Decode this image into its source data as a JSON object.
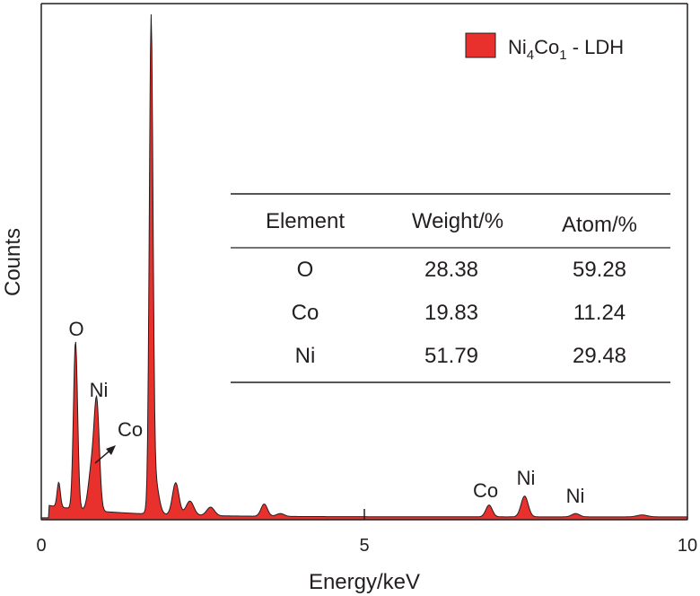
{
  "chart_data": {
    "type": "area",
    "title": "",
    "xlabel": "Energy/keV",
    "ylabel": "Counts",
    "xlim": [
      0,
      10
    ],
    "ylim": [
      0,
      1
    ],
    "x_ticks": [
      "0",
      "5",
      "10"
    ],
    "grid": false,
    "legend": {
      "position": "top-right",
      "entries": [
        {
          "base": "Ni",
          "sub1": "4",
          "mid": "Co",
          "sub2": "1",
          "suffix": " - LDH"
        }
      ]
    },
    "series": [
      {
        "name": "Ni4Co1 - LDH",
        "color": "#e8302c",
        "peaks": [
          {
            "x": 0.27,
            "h": 0.052,
            "w": 0.025
          },
          {
            "x": 0.53,
            "h": 0.355,
            "w": 0.032
          },
          {
            "x": 0.78,
            "h": 0.09,
            "w": 0.05
          },
          {
            "x": 0.86,
            "h": 0.215,
            "w": 0.04
          },
          {
            "x": 1.7,
            "h": 1.0,
            "w": 0.028
          },
          {
            "x": 1.75,
            "h": 0.08,
            "w": 0.06
          },
          {
            "x": 2.08,
            "h": 0.068,
            "w": 0.05
          },
          {
            "x": 2.3,
            "h": 0.03,
            "w": 0.06
          },
          {
            "x": 2.62,
            "h": 0.018,
            "w": 0.06
          },
          {
            "x": 3.45,
            "h": 0.026,
            "w": 0.05
          },
          {
            "x": 3.7,
            "h": 0.006,
            "w": 0.06
          },
          {
            "x": 6.93,
            "h": 0.025,
            "w": 0.05
          },
          {
            "x": 7.48,
            "h": 0.044,
            "w": 0.055
          },
          {
            "x": 8.27,
            "h": 0.007,
            "w": 0.06
          },
          {
            "x": 9.3,
            "h": 0.004,
            "w": 0.08
          }
        ]
      }
    ],
    "annotations": [
      "O",
      "Ni",
      "Co",
      "Co",
      "Ni",
      "Ni"
    ],
    "table": {
      "headers": [
        "Element",
        "Weight/%",
        "Atom/%"
      ],
      "rows": [
        [
          "O",
          "28.38",
          "59.28"
        ],
        [
          "Co",
          "19.83",
          "11.24"
        ],
        [
          "Ni",
          "51.79",
          "29.48"
        ]
      ]
    }
  }
}
